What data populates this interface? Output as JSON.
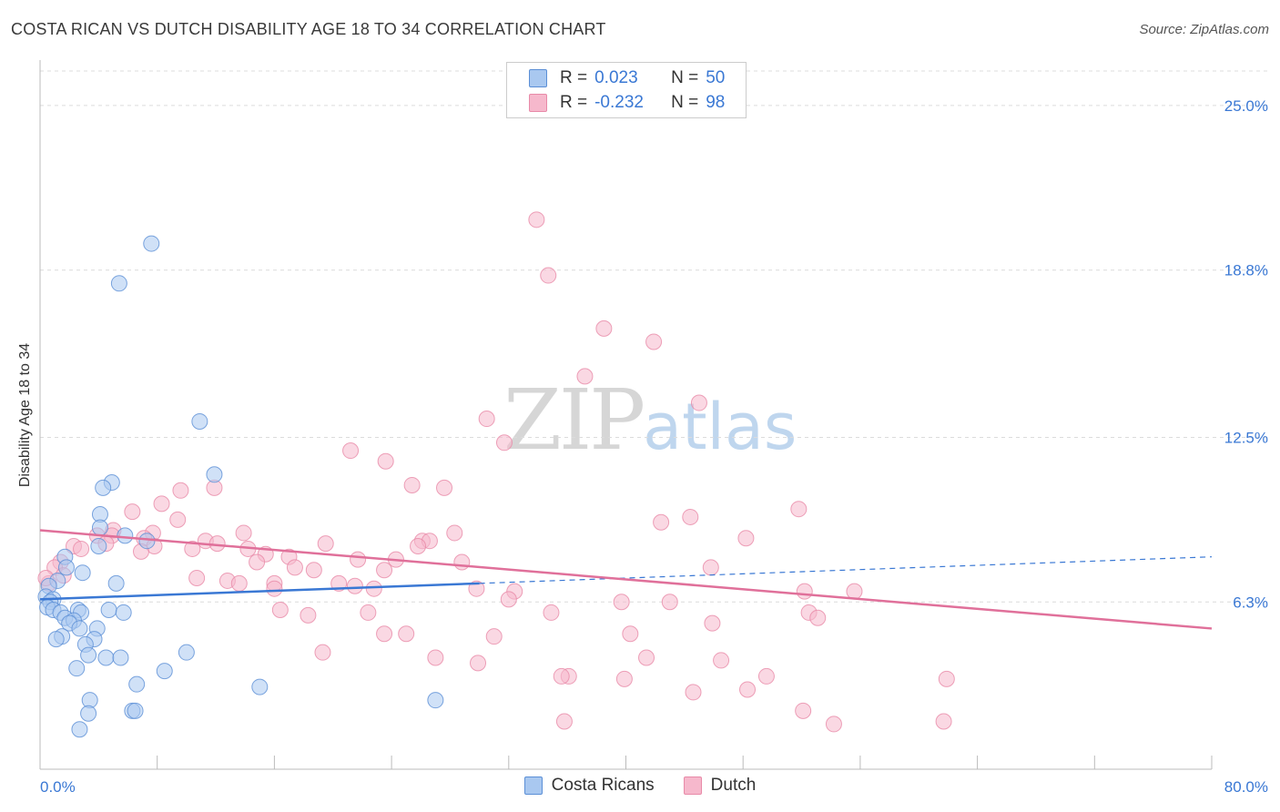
{
  "title": "COSTA RICAN VS DUTCH DISABILITY AGE 18 TO 34 CORRELATION CHART",
  "source": "Source: ZipAtlas.com",
  "watermark": {
    "zip": "ZIP",
    "atlas": "atlas"
  },
  "legend": {
    "rows": [
      {
        "r_label": "R =",
        "r_value": "0.023",
        "n_label": "N =",
        "n_value": "50"
      },
      {
        "r_label": "R =",
        "r_value": "-0.232",
        "n_label": "N =",
        "n_value": "98"
      }
    ]
  },
  "bottom_legend": [
    "Costa Ricans",
    "Dutch"
  ],
  "colors": {
    "blue_fill": "#a9c8f0",
    "blue_stroke": "#5b8fd6",
    "blue_line": "#3a78d4",
    "pink_fill": "#f6b8cc",
    "pink_stroke": "#e88aa8",
    "pink_line": "#e0709a",
    "tick_label": "#3a78d4",
    "grid": "#dcdcdc"
  },
  "chart_data": {
    "type": "scatter",
    "title": "COSTA RICAN VS DUTCH DISABILITY AGE 18 TO 34 CORRELATION CHART",
    "xlabel": "",
    "ylabel": "Disability Age 18 to 34",
    "xlim": [
      0,
      80
    ],
    "ylim": [
      0,
      26.3
    ],
    "x_tick_labels": [
      "0.0%",
      "80.0%"
    ],
    "y_ticks": [
      {
        "value": 6.3,
        "label": "6.3%"
      },
      {
        "value": 12.5,
        "label": "12.5%"
      },
      {
        "value": 18.8,
        "label": "18.8%"
      },
      {
        "value": 25.0,
        "label": "25.0%"
      }
    ],
    "series": [
      {
        "name": "Costa Ricans",
        "color": "blue",
        "r": 0.023,
        "n": 50,
        "trend": {
          "x0": 0,
          "y0": 6.4,
          "x1": 30,
          "y1": 7.0,
          "dash_to_x": 80,
          "dash_to_y": 8.0
        },
        "points": [
          [
            7.6,
            19.8
          ],
          [
            5.4,
            18.3
          ],
          [
            10.9,
            13.1
          ],
          [
            11.9,
            11.1
          ],
          [
            4.9,
            10.8
          ],
          [
            4.3,
            10.6
          ],
          [
            4.1,
            9.6
          ],
          [
            4.1,
            9.1
          ],
          [
            5.8,
            8.8
          ],
          [
            7.3,
            8.6
          ],
          [
            4.0,
            8.4
          ],
          [
            1.7,
            8.0
          ],
          [
            1.8,
            7.6
          ],
          [
            1.2,
            7.1
          ],
          [
            2.9,
            7.4
          ],
          [
            5.2,
            7.0
          ],
          [
            0.6,
            6.9
          ],
          [
            0.4,
            6.5
          ],
          [
            0.9,
            6.4
          ],
          [
            0.7,
            6.3
          ],
          [
            0.5,
            6.1
          ],
          [
            0.9,
            6.0
          ],
          [
            1.4,
            5.9
          ],
          [
            2.6,
            6.0
          ],
          [
            2.8,
            5.9
          ],
          [
            4.7,
            6.0
          ],
          [
            5.7,
            5.9
          ],
          [
            1.7,
            5.7
          ],
          [
            2.3,
            5.6
          ],
          [
            2.0,
            5.5
          ],
          [
            3.9,
            5.3
          ],
          [
            2.7,
            5.3
          ],
          [
            1.5,
            5.0
          ],
          [
            1.1,
            4.9
          ],
          [
            3.7,
            4.9
          ],
          [
            3.1,
            4.7
          ],
          [
            3.3,
            4.3
          ],
          [
            4.5,
            4.2
          ],
          [
            5.5,
            4.2
          ],
          [
            10.0,
            4.4
          ],
          [
            2.5,
            3.8
          ],
          [
            8.5,
            3.7
          ],
          [
            6.6,
            3.2
          ],
          [
            15.0,
            3.1
          ],
          [
            3.4,
            2.6
          ],
          [
            27.0,
            2.6
          ],
          [
            6.3,
            2.2
          ],
          [
            6.5,
            2.2
          ],
          [
            3.3,
            2.1
          ],
          [
            2.7,
            1.5
          ]
        ]
      },
      {
        "name": "Dutch",
        "color": "pink",
        "r": -0.232,
        "n": 98,
        "trend": {
          "x0": 0,
          "y0": 9.0,
          "x1": 80,
          "y1": 5.3
        },
        "points": [
          [
            33.9,
            20.7
          ],
          [
            34.7,
            18.6
          ],
          [
            38.5,
            16.6
          ],
          [
            41.9,
            16.1
          ],
          [
            37.2,
            14.8
          ],
          [
            45.0,
            13.8
          ],
          [
            30.5,
            13.2
          ],
          [
            31.7,
            12.3
          ],
          [
            21.2,
            12.0
          ],
          [
            23.6,
            11.6
          ],
          [
            25.4,
            10.7
          ],
          [
            11.9,
            10.6
          ],
          [
            27.6,
            10.6
          ],
          [
            9.6,
            10.5
          ],
          [
            8.3,
            10.0
          ],
          [
            51.8,
            9.8
          ],
          [
            6.3,
            9.7
          ],
          [
            44.4,
            9.5
          ],
          [
            9.4,
            9.4
          ],
          [
            42.4,
            9.3
          ],
          [
            5.0,
            9.0
          ],
          [
            7.7,
            8.9
          ],
          [
            13.9,
            8.9
          ],
          [
            28.3,
            8.9
          ],
          [
            4.9,
            8.8
          ],
          [
            3.9,
            8.8
          ],
          [
            7.1,
            8.7
          ],
          [
            48.2,
            8.7
          ],
          [
            11.3,
            8.6
          ],
          [
            12.1,
            8.5
          ],
          [
            26.1,
            8.6
          ],
          [
            26.6,
            8.6
          ],
          [
            19.5,
            8.5
          ],
          [
            2.3,
            8.4
          ],
          [
            7.8,
            8.4
          ],
          [
            4.5,
            8.5
          ],
          [
            10.4,
            8.3
          ],
          [
            14.2,
            8.3
          ],
          [
            6.9,
            8.2
          ],
          [
            25.8,
            8.4
          ],
          [
            2.8,
            8.3
          ],
          [
            15.4,
            8.1
          ],
          [
            17.0,
            8.0
          ],
          [
            24.3,
            7.9
          ],
          [
            14.8,
            7.8
          ],
          [
            21.7,
            7.9
          ],
          [
            28.8,
            7.8
          ],
          [
            1.4,
            7.8
          ],
          [
            17.4,
            7.6
          ],
          [
            18.7,
            7.5
          ],
          [
            1.0,
            7.6
          ],
          [
            23.5,
            7.5
          ],
          [
            45.8,
            7.6
          ],
          [
            1.6,
            7.3
          ],
          [
            10.7,
            7.2
          ],
          [
            12.8,
            7.1
          ],
          [
            16.0,
            7.0
          ],
          [
            13.6,
            7.0
          ],
          [
            20.4,
            7.0
          ],
          [
            0.6,
            7.0
          ],
          [
            21.5,
            6.9
          ],
          [
            22.8,
            6.8
          ],
          [
            16.0,
            6.8
          ],
          [
            29.8,
            6.8
          ],
          [
            32.4,
            6.7
          ],
          [
            52.2,
            6.7
          ],
          [
            55.6,
            6.7
          ],
          [
            32.0,
            6.4
          ],
          [
            39.7,
            6.3
          ],
          [
            43.0,
            6.3
          ],
          [
            16.4,
            6.0
          ],
          [
            18.3,
            5.8
          ],
          [
            22.4,
            5.9
          ],
          [
            34.9,
            5.9
          ],
          [
            52.5,
            5.9
          ],
          [
            53.1,
            5.7
          ],
          [
            45.9,
            5.5
          ],
          [
            23.5,
            5.1
          ],
          [
            25.0,
            5.1
          ],
          [
            40.3,
            5.1
          ],
          [
            31.0,
            5.0
          ],
          [
            19.3,
            4.4
          ],
          [
            27.0,
            4.2
          ],
          [
            41.4,
            4.2
          ],
          [
            46.5,
            4.1
          ],
          [
            29.9,
            4.0
          ],
          [
            36.1,
            3.5
          ],
          [
            35.6,
            3.5
          ],
          [
            39.9,
            3.4
          ],
          [
            49.6,
            3.5
          ],
          [
            61.9,
            3.4
          ],
          [
            48.3,
            3.0
          ],
          [
            44.6,
            2.9
          ],
          [
            52.1,
            2.2
          ],
          [
            35.8,
            1.8
          ],
          [
            54.2,
            1.7
          ],
          [
            61.7,
            1.8
          ],
          [
            0.4,
            7.2
          ]
        ]
      }
    ]
  }
}
